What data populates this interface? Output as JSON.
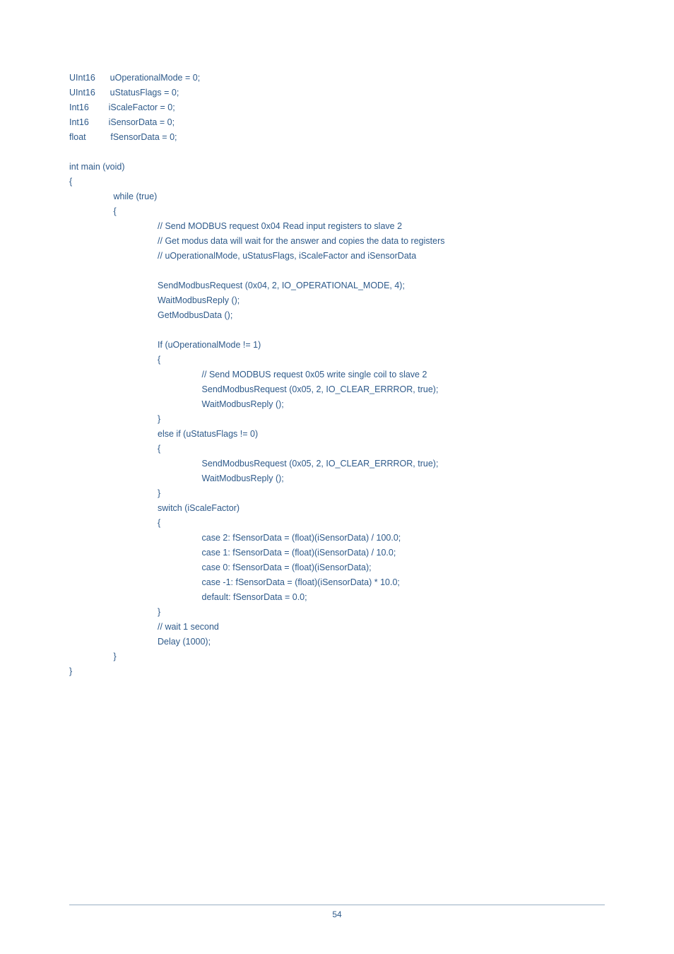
{
  "lines": [
    "UInt16      uOperationalMode = 0;",
    "UInt16      uStatusFlags = 0;",
    "Int16        iScaleFactor = 0;",
    "Int16        iSensorData = 0;",
    "float          fSensorData = 0;",
    "",
    "int main (void)",
    "{",
    "                  while (true)",
    "                  {",
    "                                    // Send MODBUS request 0x04 Read input registers to slave 2",
    "                                    // Get modus data will wait for the answer and copies the data to registers",
    "                                    // uOperationalMode, uStatusFlags, iScaleFactor and iSensorData",
    "",
    "                                    SendModbusRequest (0x04, 2, IO_OPERATIONAL_MODE, 4);",
    "                                    WaitModbusReply ();",
    "                                    GetModbusData ();",
    "",
    "                                    If (uOperationalMode != 1)",
    "                                    {",
    "                                                      // Send MODBUS request 0x05 write single coil to slave 2",
    "                                                      SendModbusRequest (0x05, 2, IO_CLEAR_ERRROR, true);",
    "                                                      WaitModbusReply ();",
    "                                    }",
    "                                    else if (uStatusFlags != 0)",
    "                                    {",
    "                                                      SendModbusRequest (0x05, 2, IO_CLEAR_ERRROR, true);",
    "                                                      WaitModbusReply ();",
    "                                    }",
    "                                    switch (iScaleFactor)",
    "                                    {",
    "                                                      case 2: fSensorData = (float)(iSensorData) / 100.0;",
    "                                                      case 1: fSensorData = (float)(iSensorData) / 10.0;",
    "                                                      case 0: fSensorData = (float)(iSensorData);",
    "                                                      case -1: fSensorData = (float)(iSensorData) * 10.0;",
    "                                                      default: fSensorData = 0.0;",
    "                                    }",
    "                                    // wait 1 second",
    "                                    Delay (1000);",
    "                  }",
    "}"
  ],
  "pageNumber": "54"
}
